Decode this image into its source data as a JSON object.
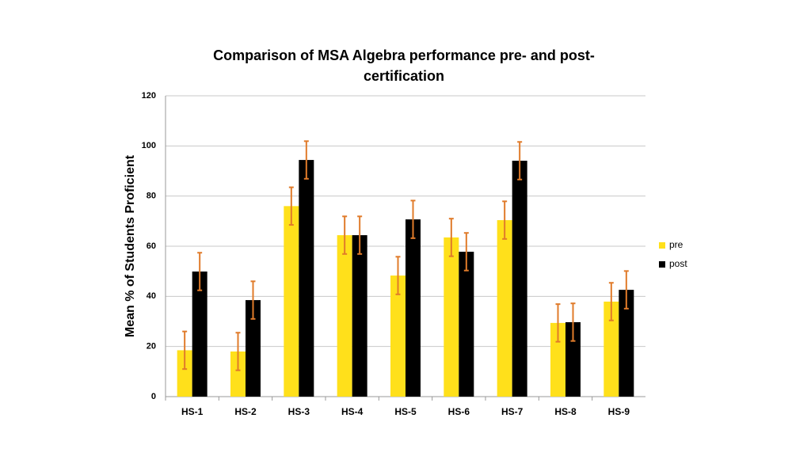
{
  "chart_data": {
    "type": "bar",
    "title": "Comparison of MSA Algebra performance pre- and post-certification",
    "y_label": "Mean % of Students Proficient",
    "categories": [
      "HS-1",
      "HS-2",
      "HS-3",
      "HS-4",
      "HS-5",
      "HS-6",
      "HS-7",
      "HS-8",
      "HS-9"
    ],
    "series": [
      {
        "name": "pre",
        "color": "#ffe01b",
        "values": [
          18.5,
          18,
          76,
          64.4,
          48.3,
          63.5,
          70.4,
          29.4,
          37.9
        ],
        "errors": [
          7.5,
          7.5,
          7.5,
          7.5,
          7.5,
          7.5,
          7.5,
          7.5,
          7.5
        ]
      },
      {
        "name": "post",
        "color": "#000000",
        "values": [
          49.9,
          38.5,
          94.4,
          64.4,
          70.7,
          57.8,
          94.1,
          29.7,
          42.6
        ],
        "errors": [
          7.5,
          7.5,
          7.5,
          7.5,
          7.5,
          7.5,
          7.5,
          7.5,
          7.5
        ]
      }
    ],
    "error_color": "#e07b2a",
    "ylim": [
      0,
      120
    ],
    "yticks": [
      0,
      20,
      40,
      60,
      80,
      100,
      120
    ],
    "grid": true,
    "legend": "right"
  }
}
